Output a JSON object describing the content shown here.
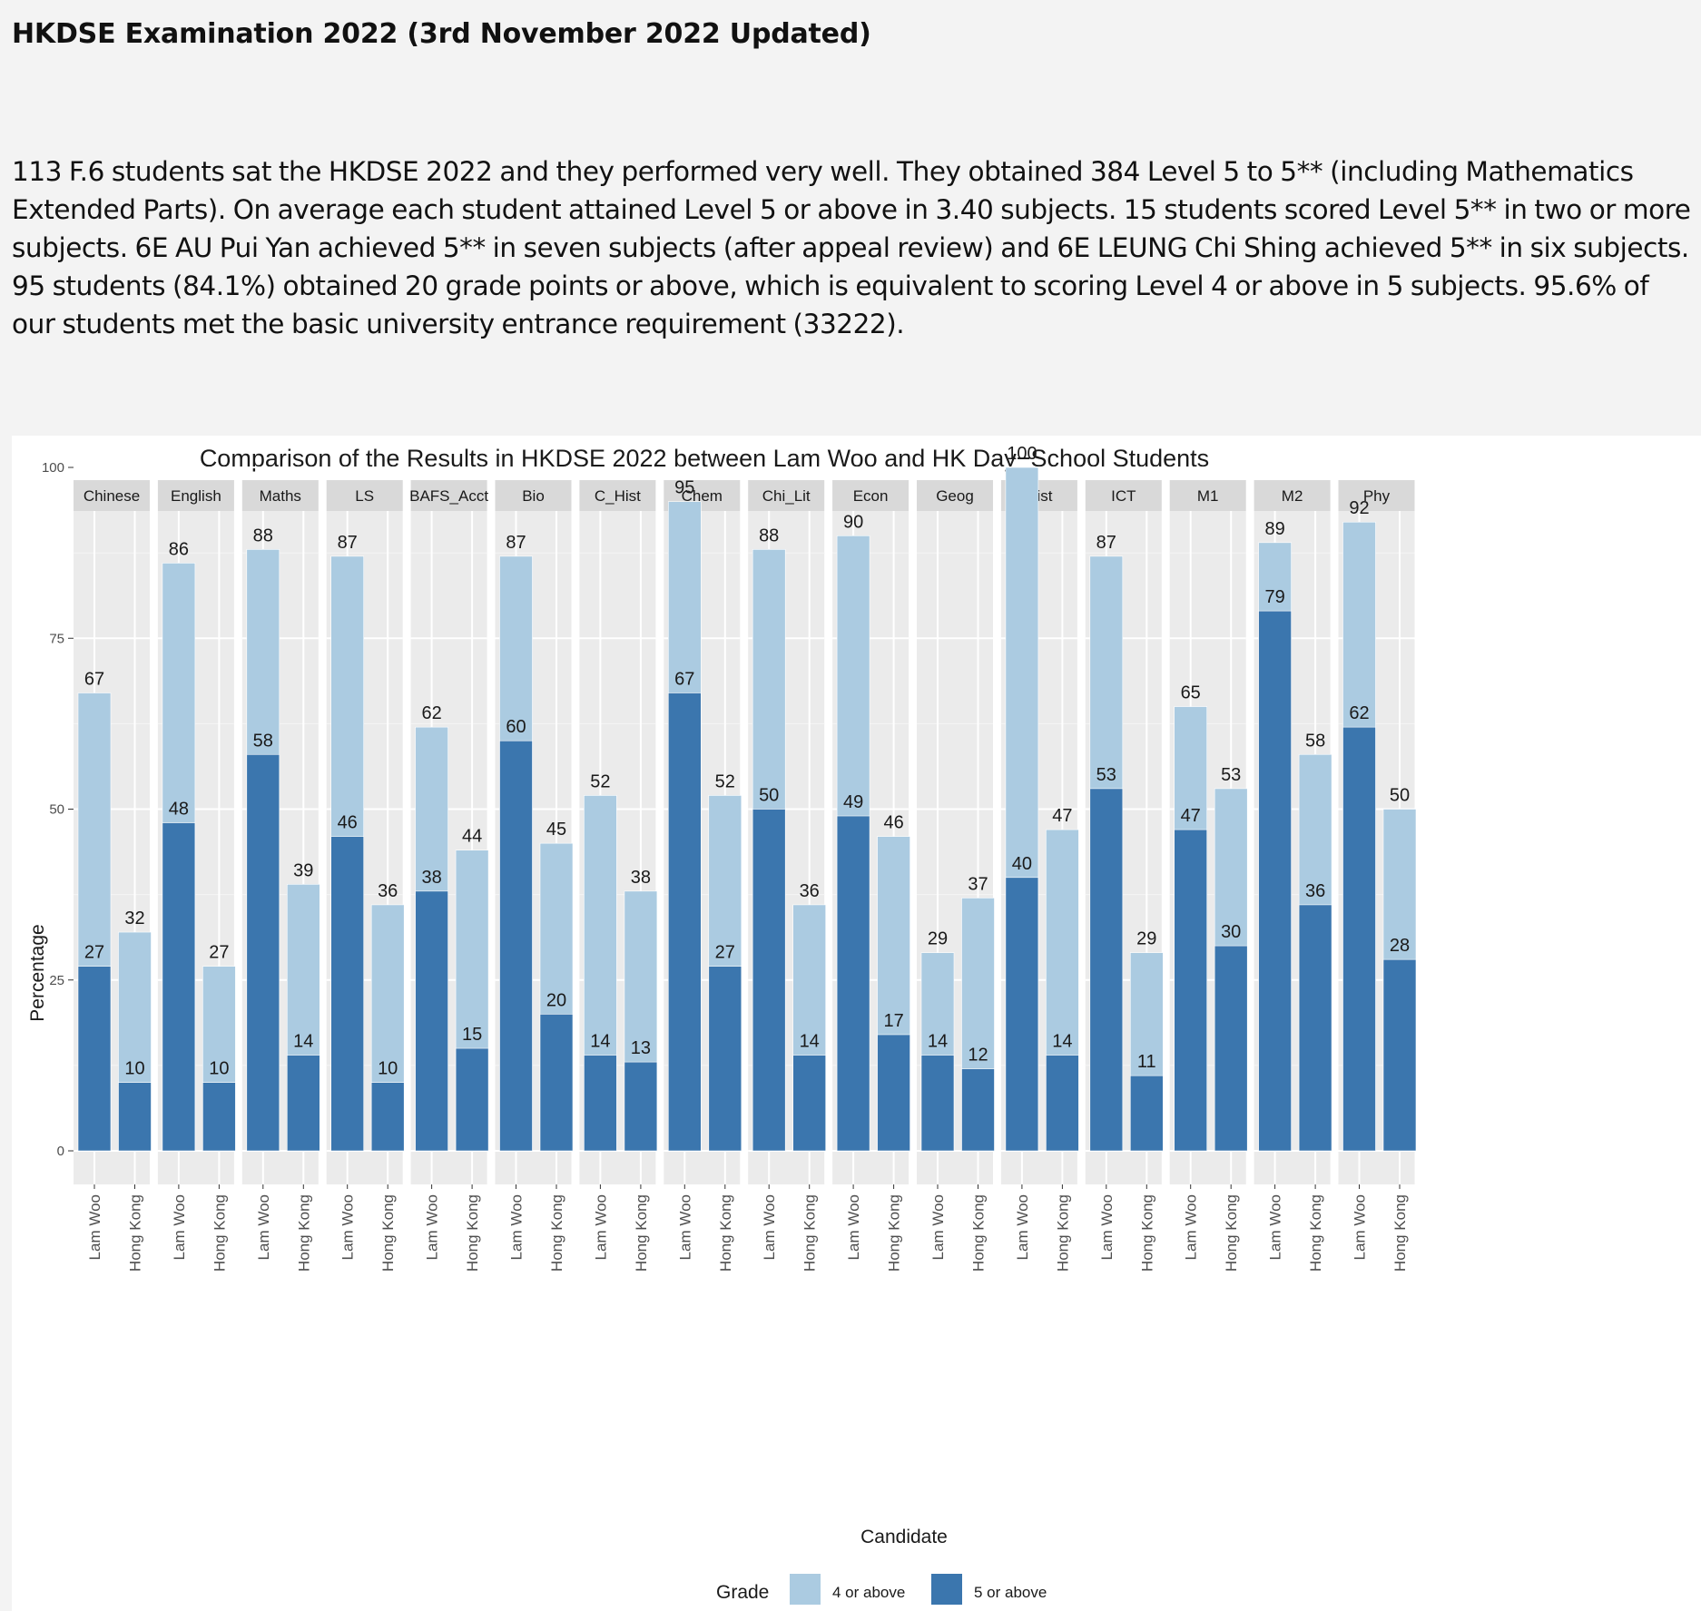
{
  "page": {
    "title": "HKDSE Examination 2022 (3rd November 2022 Updated)",
    "intro": "113 F.6 students sat the HKDSE 2022 and they performed very well. They obtained 384 Level 5 to 5** (including Mathematics Extended Parts). On average each student attained Level 5 or above in 3.40 subjects. 15 students scored Level 5** in two or more subjects. 6E AU Pui Yan achieved 5** in seven subjects (after appeal review) and 6E LEUNG Chi Shing achieved 5** in six subjects. 95 students (84.1%) obtained 20 grade points or above, which is equivalent to scoring Level 4 or above in 5 subjects. 95.6% of our students met the basic university entrance requirement (33222)."
  },
  "chart_data": {
    "type": "bar",
    "title": "Comparison of the Results in HKDSE 2022 between Lam Woo and HK Day−School Students",
    "xlabel": "Candidate",
    "ylabel": "Percentage",
    "ylim": [
      0,
      105
    ],
    "yticks": [
      0,
      25,
      50,
      75,
      100
    ],
    "grid": true,
    "legend": {
      "title": "Grade",
      "position": "bottom",
      "entries": [
        {
          "name": "4 or above",
          "color": "#abcbe1"
        },
        {
          "name": "5 or above",
          "color": "#3b76ae"
        }
      ]
    },
    "candidates": [
      "Lam Woo",
      "Hong Kong"
    ],
    "panels": [
      {
        "subject": "Chinese",
        "four_or_above": [
          67,
          32
        ],
        "five_or_above": [
          27,
          10
        ]
      },
      {
        "subject": "English",
        "four_or_above": [
          86,
          27
        ],
        "five_or_above": [
          48,
          10
        ]
      },
      {
        "subject": "Maths",
        "four_or_above": [
          88,
          39
        ],
        "five_or_above": [
          58,
          14
        ]
      },
      {
        "subject": "LS",
        "four_or_above": [
          87,
          36
        ],
        "five_or_above": [
          46,
          10
        ]
      },
      {
        "subject": "BAFS_Acct",
        "four_or_above": [
          62,
          44
        ],
        "five_or_above": [
          38,
          15
        ]
      },
      {
        "subject": "Bio",
        "four_or_above": [
          87,
          45
        ],
        "five_or_above": [
          60,
          20
        ]
      },
      {
        "subject": "C_Hist",
        "four_or_above": [
          52,
          38
        ],
        "five_or_above": [
          14,
          13
        ]
      },
      {
        "subject": "Chem",
        "four_or_above": [
          95,
          52
        ],
        "five_or_above": [
          67,
          27
        ]
      },
      {
        "subject": "Chi_Lit",
        "four_or_above": [
          88,
          36
        ],
        "five_or_above": [
          50,
          14
        ]
      },
      {
        "subject": "Econ",
        "four_or_above": [
          90,
          46
        ],
        "five_or_above": [
          49,
          17
        ]
      },
      {
        "subject": "Geog",
        "four_or_above": [
          29,
          37
        ],
        "five_or_above": [
          14,
          12
        ]
      },
      {
        "subject": "Hist",
        "four_or_above": [
          100,
          47
        ],
        "five_or_above": [
          40,
          14
        ]
      },
      {
        "subject": "ICT",
        "four_or_above": [
          87,
          29
        ],
        "five_or_above": [
          53,
          11
        ]
      },
      {
        "subject": "M1",
        "four_or_above": [
          65,
          53
        ],
        "five_or_above": [
          47,
          30
        ]
      },
      {
        "subject": "M2",
        "four_or_above": [
          89,
          58
        ],
        "five_or_above": [
          79,
          36
        ]
      },
      {
        "subject": "Phy",
        "four_or_above": [
          92,
          50
        ],
        "five_or_above": [
          62,
          28
        ]
      }
    ]
  }
}
